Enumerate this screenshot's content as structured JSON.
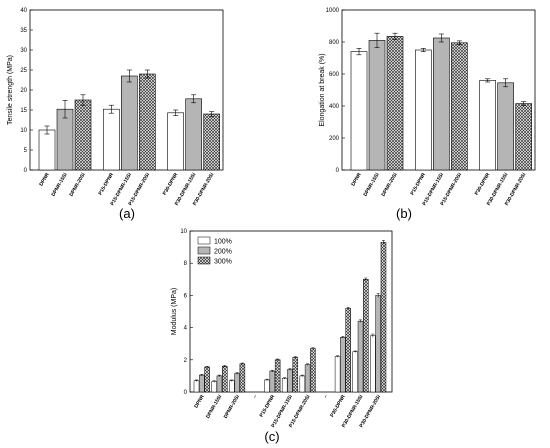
{
  "patterns": {
    "fill_white": "#ffffff",
    "fill_gray": "#b5b5b5",
    "fill_hatch": "crosshatch"
  },
  "chart_data": [
    {
      "panel": "(a)",
      "type": "bar",
      "xlabel": "",
      "ylabel": "Tensile strength (MPa)",
      "ylim": [
        0,
        40
      ],
      "yticks": [
        0,
        5,
        10,
        15,
        20,
        25,
        30,
        35,
        40
      ],
      "categories": [
        "DPNR",
        "DPNR-15Si",
        "DPNR-20Si",
        "P15-DPNR",
        "P15-DPNR-15Si",
        "P15-DPNR-20Si",
        "P30-DPNR",
        "P30-DPNR-15Si",
        "P30-DPNR-20Si"
      ],
      "values": [
        10.0,
        15.2,
        17.5,
        15.2,
        23.5,
        24.0,
        14.3,
        17.8,
        14.0
      ],
      "errors": [
        1.0,
        2.2,
        1.3,
        1.0,
        1.5,
        1.0,
        0.7,
        1.0,
        0.6
      ],
      "fills": [
        "fill_white",
        "fill_gray",
        "fill_hatch",
        "fill_white",
        "fill_gray",
        "fill_hatch",
        "fill_white",
        "fill_gray",
        "fill_hatch"
      ],
      "grid": false
    },
    {
      "panel": "(b)",
      "type": "bar",
      "xlabel": "",
      "ylabel": "Elongation at break (%)",
      "ylim": [
        0,
        1000
      ],
      "yticks": [
        0,
        200,
        400,
        600,
        800,
        1000
      ],
      "categories": [
        "DPNR",
        "DPNR-15Si",
        "DPNR-20Si",
        "P15-DPNR",
        "P15-DPNR-15Si",
        "P15-DPNR-20Si",
        "P30-DPNR",
        "P30-DPNR-15Si",
        "P30-DPNR-20Si"
      ],
      "values": [
        740,
        810,
        835,
        750,
        825,
        795,
        560,
        545,
        415
      ],
      "errors": [
        20,
        45,
        20,
        10,
        25,
        12,
        10,
        25,
        12
      ],
      "fills": [
        "fill_white",
        "fill_gray",
        "fill_hatch",
        "fill_white",
        "fill_gray",
        "fill_hatch",
        "fill_white",
        "fill_gray",
        "fill_hatch"
      ],
      "grid": false
    },
    {
      "panel": "(c)",
      "type": "bar",
      "xlabel": "",
      "ylabel": "Modulus (MPa)",
      "ylim": [
        0,
        10
      ],
      "yticks": [
        0,
        2,
        4,
        6,
        8,
        10
      ],
      "categories": [
        "DPNR",
        "DPNR-15Si",
        "DPNR-20Si",
        "–",
        "P15-DPNR",
        "P15-DPNR-15Si",
        "P15-DPNR-20Si",
        "–",
        "P30-DPNR",
        "P30-DPNR-15Si",
        "P30-DPNR-20Si"
      ],
      "legend_position": "top-left",
      "series": [
        {
          "name": "100%",
          "fill": "fill_white",
          "values": [
            0.7,
            0.65,
            0.7,
            null,
            0.75,
            0.85,
            1.0,
            null,
            2.2,
            2.5,
            3.5
          ],
          "errors": [
            0.05,
            0.05,
            0.05,
            null,
            0.05,
            0.05,
            0.05,
            null,
            0.05,
            0.05,
            0.1
          ]
        },
        {
          "name": "200%",
          "fill": "fill_gray",
          "values": [
            1.05,
            1.0,
            1.15,
            null,
            1.3,
            1.4,
            1.7,
            null,
            3.4,
            4.4,
            6.0
          ],
          "errors": [
            0.05,
            0.05,
            0.05,
            null,
            0.05,
            0.05,
            0.05,
            null,
            0.05,
            0.08,
            0.12
          ]
        },
        {
          "name": "300%",
          "fill": "fill_hatch",
          "values": [
            1.55,
            1.6,
            1.75,
            null,
            2.0,
            2.15,
            2.7,
            null,
            5.2,
            7.0,
            9.3
          ],
          "errors": [
            0.05,
            0.05,
            0.05,
            null,
            0.05,
            0.05,
            0.05,
            null,
            0.06,
            0.08,
            0.12
          ]
        }
      ],
      "grid": false
    }
  ]
}
